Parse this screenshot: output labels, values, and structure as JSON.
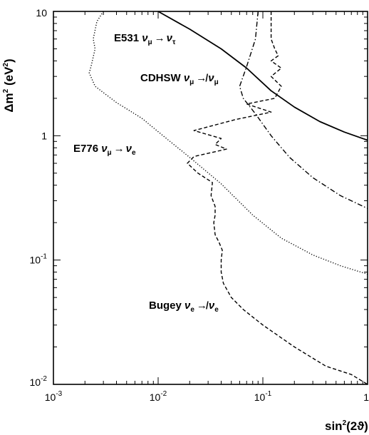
{
  "chart_data": {
    "type": "line",
    "xscale": "log",
    "yscale": "log",
    "xlim": [
      0.001,
      1
    ],
    "ylim": [
      0.01,
      10
    ],
    "grid": false,
    "xlabel": {
      "main": "sin",
      "sup": "2",
      "rest": "(2ϑ)"
    },
    "ylabel": {
      "delta": "Δm",
      "sup": "2",
      "units": " (eV",
      "units_sup": "2",
      "close": ")"
    },
    "xticks": [
      {
        "base": "10",
        "exp": "-3"
      },
      {
        "base": "10",
        "exp": "-2"
      },
      {
        "base": "10",
        "exp": "-1"
      },
      {
        "base": "1",
        "exp": ""
      }
    ],
    "yticks": [
      {
        "base": "10",
        "exp": ""
      },
      {
        "base": "1",
        "exp": ""
      },
      {
        "base": "10",
        "exp": "-1"
      },
      {
        "base": "10",
        "exp": "-2"
      }
    ],
    "annotations": [
      {
        "name": "annotation-e531",
        "prefix": "E531 ",
        "from": "ν",
        "from_sub": "μ",
        "arrow": "→",
        "to": "ν",
        "to_sub": "τ"
      },
      {
        "name": "annotation-cdhsw",
        "prefix": "CDHSW ",
        "from": "ν",
        "from_sub": "μ",
        "arrow": "↛",
        "to": "ν",
        "to_sub": "μ"
      },
      {
        "name": "annotation-e776",
        "prefix": "E776 ",
        "from": "ν",
        "from_sub": "μ",
        "arrow": "→",
        "to": "ν",
        "to_sub": "e"
      },
      {
        "name": "annotation-bugey",
        "prefix": "Bugey ",
        "from": "ν",
        "from_sub": "e",
        "arrow": "↛",
        "to": "ν",
        "to_sub": "e"
      }
    ],
    "series": [
      {
        "style": "solid",
        "points": [
          [
            0.01,
            10
          ],
          [
            0.02,
            7.2
          ],
          [
            0.04,
            5.0
          ],
          [
            0.07,
            3.5
          ],
          [
            0.12,
            2.3
          ],
          [
            0.2,
            1.7
          ],
          [
            0.35,
            1.3
          ],
          [
            0.6,
            1.07
          ],
          [
            1.0,
            0.92
          ]
        ]
      },
      {
        "style": "dashdot",
        "points": [
          [
            0.09,
            10
          ],
          [
            0.085,
            6.0
          ],
          [
            0.07,
            3.6
          ],
          [
            0.06,
            2.5
          ],
          [
            0.065,
            2.0
          ],
          [
            0.085,
            1.5
          ],
          [
            0.12,
            1.0
          ],
          [
            0.18,
            0.67
          ],
          [
            0.3,
            0.46
          ],
          [
            0.55,
            0.33
          ],
          [
            1.0,
            0.26
          ]
        ]
      },
      {
        "style": "dotted",
        "points": [
          [
            0.003,
            10
          ],
          [
            0.0026,
            8.3
          ],
          [
            0.0024,
            6.0
          ],
          [
            0.0025,
            5.0
          ],
          [
            0.0023,
            3.7
          ],
          [
            0.0022,
            3.2
          ],
          [
            0.0025,
            2.5
          ],
          [
            0.004,
            1.85
          ],
          [
            0.007,
            1.38
          ],
          [
            0.012,
            0.95
          ],
          [
            0.02,
            0.67
          ],
          [
            0.04,
            0.41
          ],
          [
            0.08,
            0.23
          ],
          [
            0.15,
            0.15
          ],
          [
            0.3,
            0.11
          ],
          [
            0.55,
            0.09
          ],
          [
            1.0,
            0.077
          ]
        ]
      },
      {
        "style": "dashed",
        "points": [
          [
            0.12,
            10
          ],
          [
            0.12,
            6.0
          ],
          [
            0.13,
            5.0
          ],
          [
            0.14,
            4.4
          ],
          [
            0.12,
            4.0
          ],
          [
            0.15,
            3.5
          ],
          [
            0.12,
            3.0
          ],
          [
            0.15,
            2.5
          ],
          [
            0.13,
            2.0
          ],
          [
            0.07,
            1.8
          ],
          [
            0.12,
            1.55
          ],
          [
            0.055,
            1.35
          ],
          [
            0.022,
            1.1
          ],
          [
            0.04,
            0.95
          ],
          [
            0.035,
            0.85
          ],
          [
            0.045,
            0.78
          ],
          [
            0.022,
            0.68
          ],
          [
            0.019,
            0.6
          ],
          [
            0.024,
            0.5
          ],
          [
            0.033,
            0.42
          ],
          [
            0.032,
            0.33
          ],
          [
            0.035,
            0.27
          ],
          [
            0.035,
            0.23
          ],
          [
            0.034,
            0.2
          ],
          [
            0.035,
            0.16
          ],
          [
            0.038,
            0.14
          ],
          [
            0.041,
            0.12
          ],
          [
            0.04,
            0.1
          ],
          [
            0.04,
            0.08
          ],
          [
            0.042,
            0.065
          ],
          [
            0.05,
            0.05
          ],
          [
            0.065,
            0.04
          ],
          [
            0.1,
            0.03
          ],
          [
            0.2,
            0.02
          ],
          [
            0.4,
            0.014
          ],
          [
            0.7,
            0.012
          ],
          [
            1.0,
            0.01
          ]
        ]
      }
    ]
  }
}
